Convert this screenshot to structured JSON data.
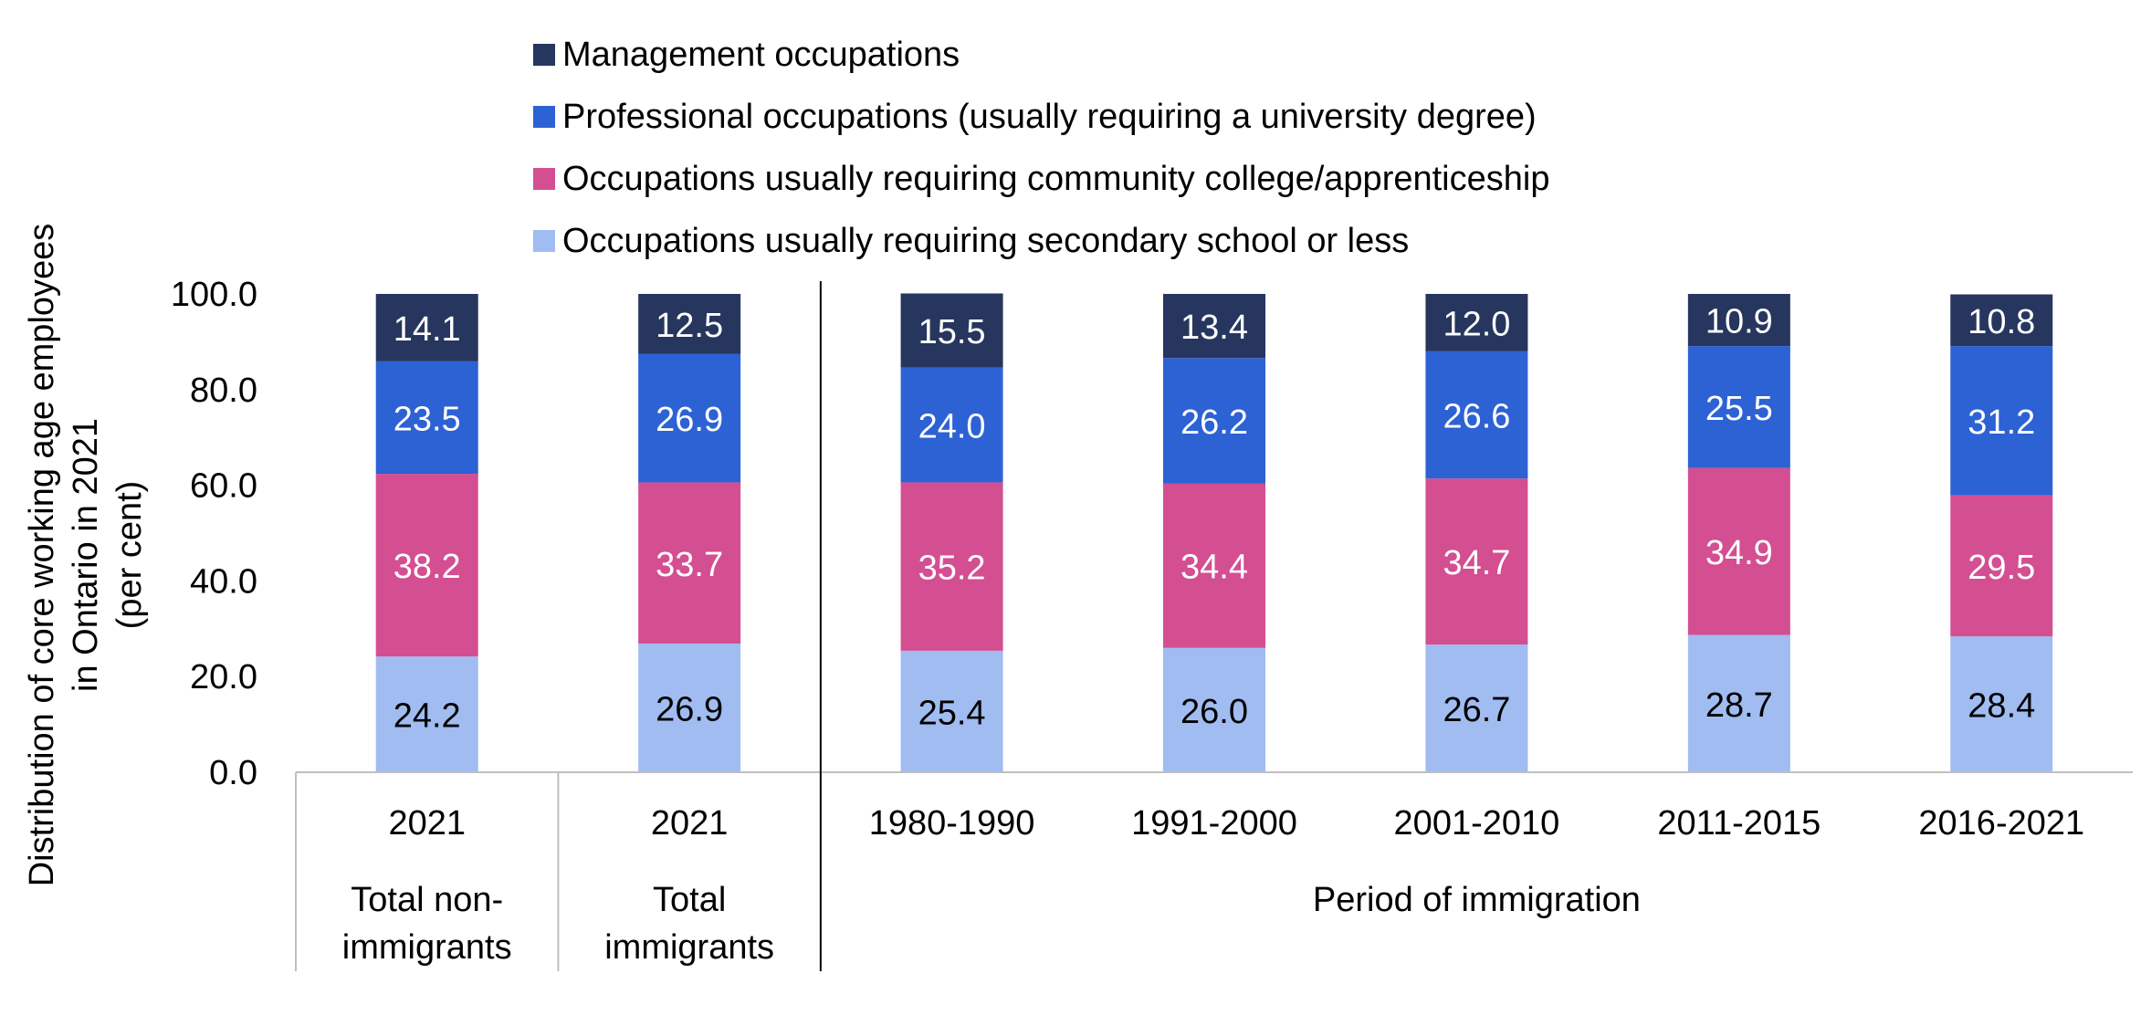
{
  "chart_data": {
    "type": "bar",
    "stacked": true,
    "ylabel": [
      "Distribution of core working age employees",
      "in Ontario in 2021",
      "(per cent)"
    ],
    "ylim": [
      0,
      100
    ],
    "yticks": [
      "0.0",
      "20.0",
      "40.0",
      "60.0",
      "80.0",
      "100.0"
    ],
    "categories": [
      "2021",
      "2021",
      "1980-1990",
      "1991-2000",
      "2001-2010",
      "2011-2015",
      "2016-2021"
    ],
    "groups": [
      {
        "label": [
          "Total non-",
          "immigrants"
        ],
        "span": [
          0,
          0
        ]
      },
      {
        "label": [
          "Total",
          "immigrants"
        ],
        "span": [
          1,
          1
        ]
      },
      {
        "label": [
          "Period of immigration"
        ],
        "span": [
          2,
          6
        ]
      }
    ],
    "legend_position": "top",
    "series": [
      {
        "name": "Occupations usually requiring secondary school or less",
        "color": "#a0bcf0",
        "label_color": "#000000",
        "values": [
          24.2,
          26.9,
          25.4,
          26.0,
          26.7,
          28.7,
          28.4
        ]
      },
      {
        "name": "Occupations usually requiring community college/apprenticeship",
        "color": "#d44e92",
        "label_color": "#ffffff",
        "values": [
          38.2,
          33.7,
          35.2,
          34.4,
          34.7,
          34.9,
          29.5
        ]
      },
      {
        "name": "Professional occupations (usually requiring a university degree)",
        "color": "#2d62d4",
        "label_color": "#ffffff",
        "values": [
          23.5,
          26.9,
          24.0,
          26.2,
          26.6,
          25.5,
          31.2
        ]
      },
      {
        "name": "Management occupations",
        "color": "#26365e",
        "label_color": "#ffffff",
        "values": [
          14.1,
          12.5,
          15.5,
          13.4,
          12.0,
          10.9,
          10.8
        ]
      }
    ],
    "legend_order": [
      3,
      2,
      1,
      0
    ]
  }
}
